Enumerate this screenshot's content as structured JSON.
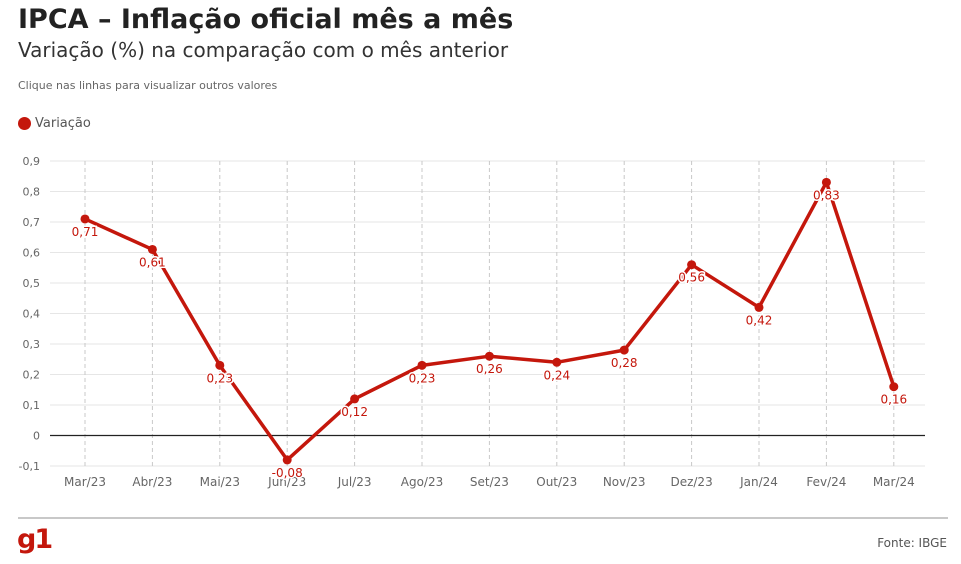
{
  "header": {
    "title": "IPCA – Inflação oficial mês a mês",
    "subtitle": "Variação (%) na comparação com o mês anterior",
    "hint": "Clique nas linhas para visualizar outros valores"
  },
  "legend": {
    "label": "Variação"
  },
  "footer": {
    "logo": "g1",
    "source": "Fonte: IBGE"
  },
  "colors": {
    "series": "#c4170c",
    "grid": "#e6e6e6",
    "axis_text": "#666666",
    "zero_line": "#222222"
  },
  "chart_data": {
    "type": "line",
    "categories": [
      "Mar/23",
      "Abr/23",
      "Mai/23",
      "Jun/23",
      "Jul/23",
      "Ago/23",
      "Set/23",
      "Out/23",
      "Nov/23",
      "Dez/23",
      "Jan/24",
      "Fev/24",
      "Mar/24"
    ],
    "series": [
      {
        "name": "Variação",
        "values": [
          0.71,
          0.61,
          0.23,
          -0.08,
          0.12,
          0.23,
          0.26,
          0.24,
          0.28,
          0.56,
          0.42,
          0.83,
          0.16
        ],
        "labels": [
          "0,71",
          "0,61",
          "0,23",
          "-0,08",
          "0,12",
          "0,23",
          "0,26",
          "0,24",
          "0,28",
          "0,56",
          "0,42",
          "0,83",
          "0,16"
        ]
      }
    ],
    "yticks": [
      0.9,
      0.8,
      0.7,
      0.6,
      0.5,
      0.4,
      0.3,
      0.2,
      0.1,
      0,
      -0.1
    ],
    "ytick_labels": [
      "0,9",
      "0,8",
      "0,7",
      "0,6",
      "0,5",
      "0,4",
      "0,3",
      "0,2",
      "0,1",
      "0",
      "-0,1"
    ],
    "ylim": [
      -0.1,
      0.9
    ],
    "grid": true,
    "legend_position": "top-left"
  }
}
